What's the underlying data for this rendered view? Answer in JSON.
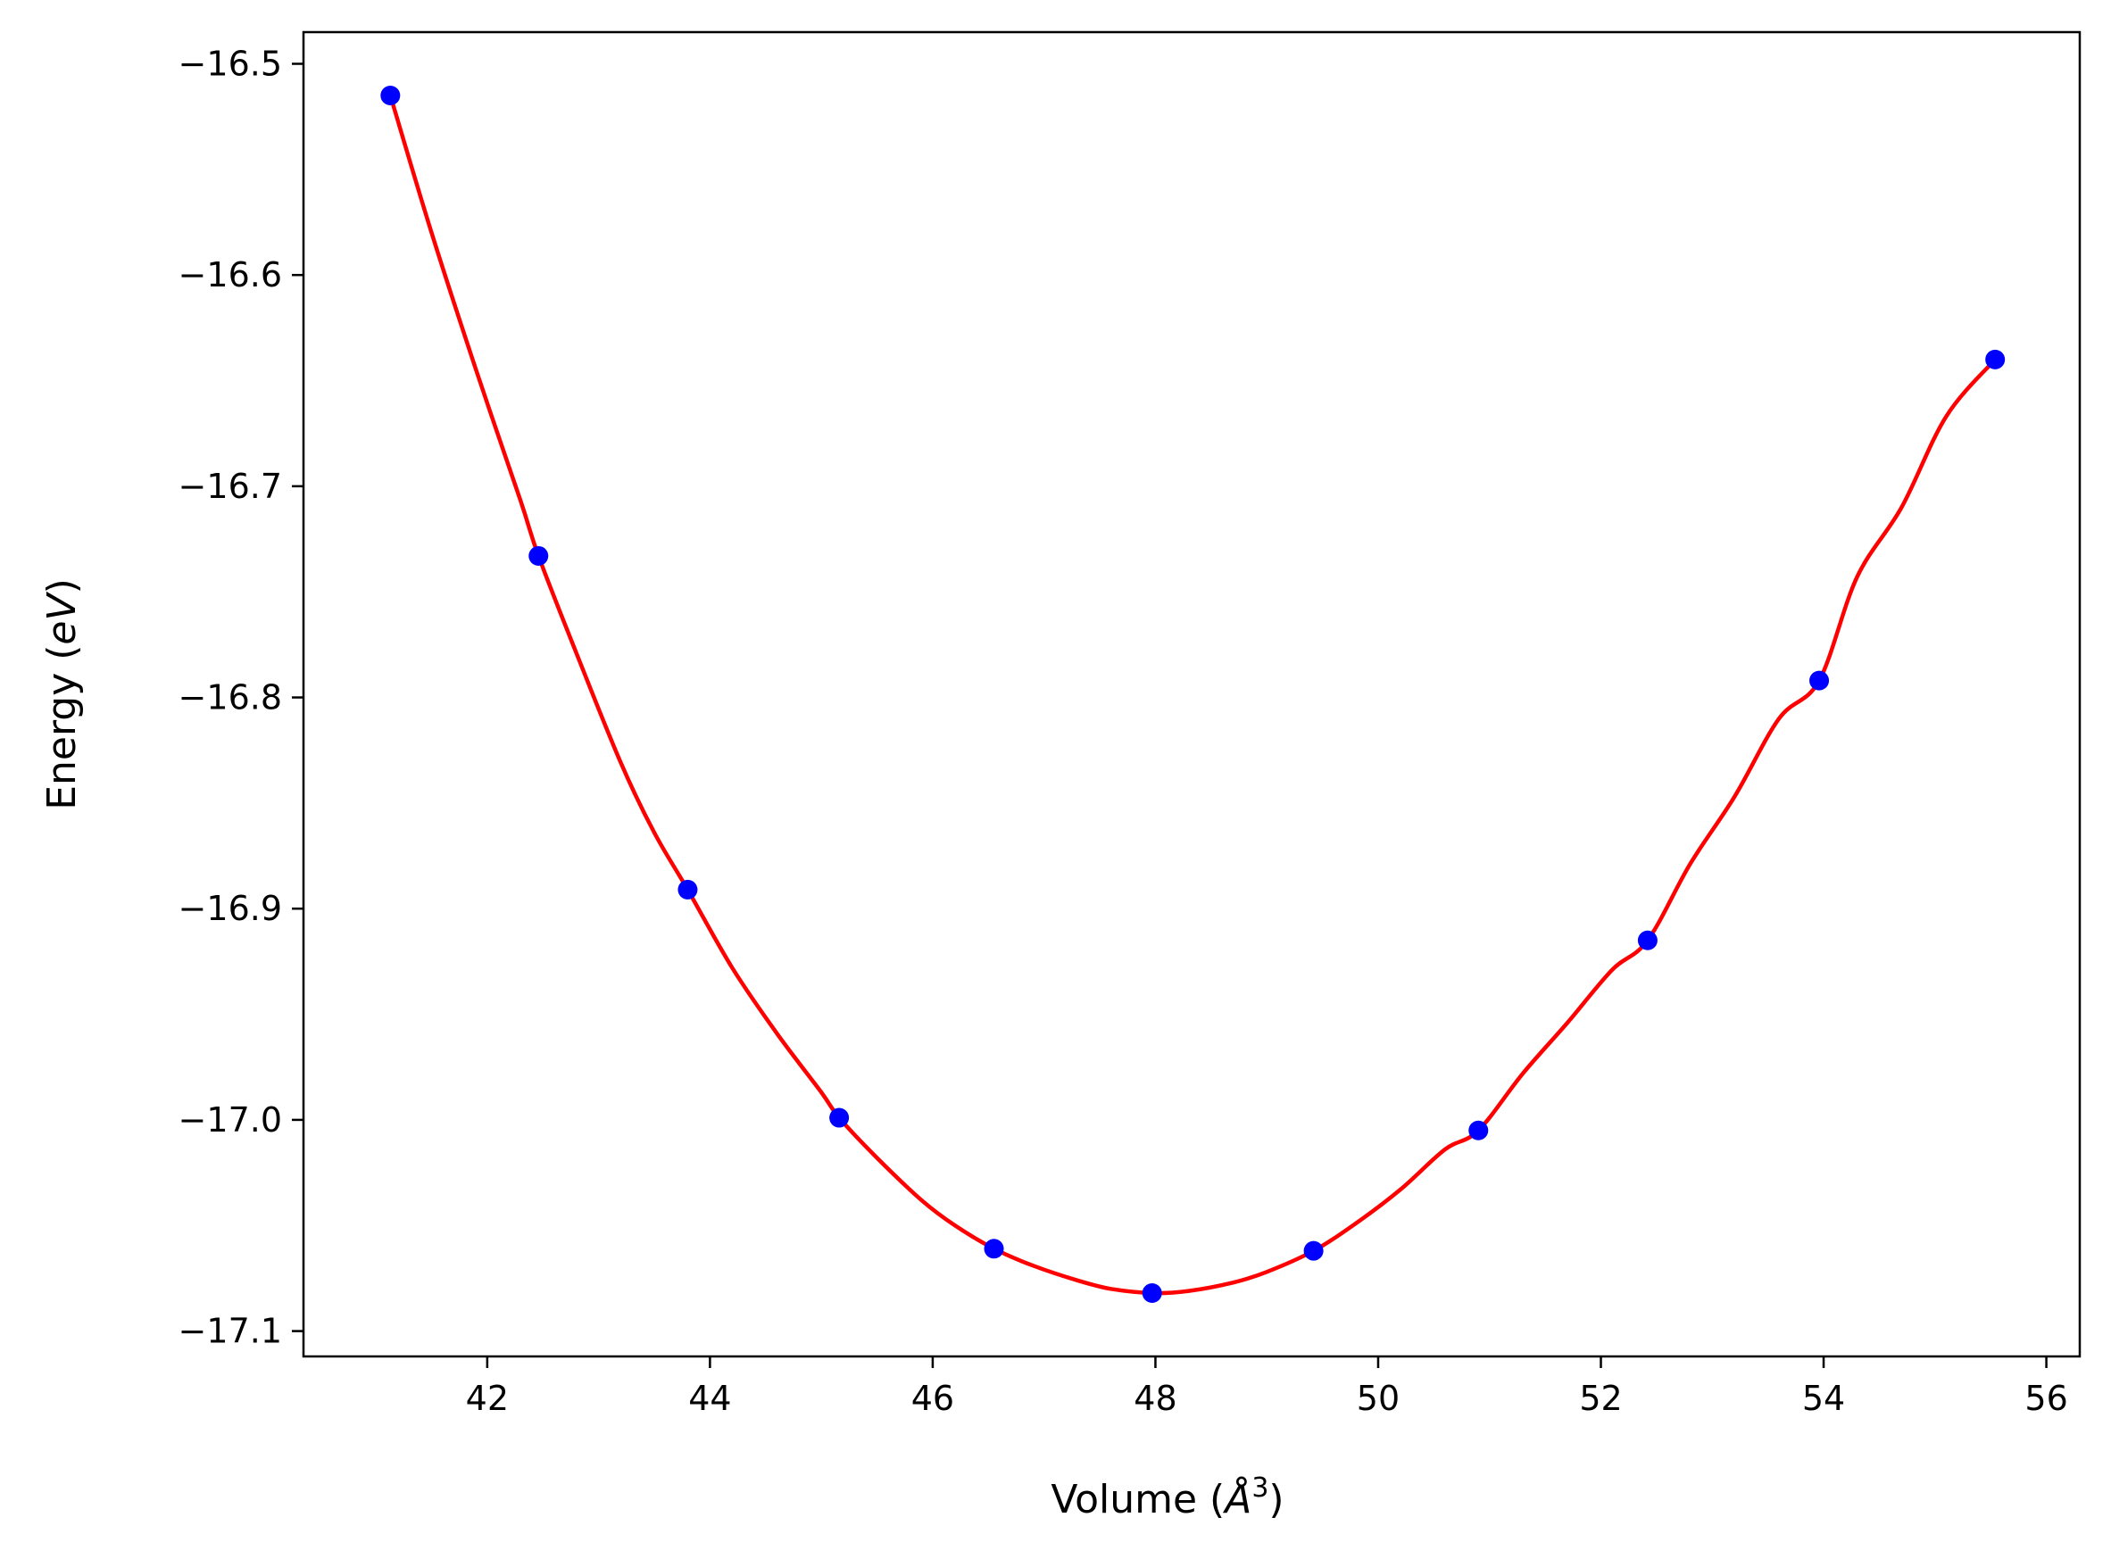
{
  "chart_data": {
    "type": "scatter",
    "title": "",
    "xlabel": {
      "prefix": "Volume (",
      "symbol": "Å",
      "exponent": "3",
      "suffix": ")"
    },
    "ylabel": {
      "prefix": "Energy (",
      "unit": "eV",
      "suffix": ")"
    },
    "xlim": [
      40.35,
      56.3
    ],
    "ylim": [
      -17.112,
      -16.485
    ],
    "xticks": [
      42,
      44,
      46,
      48,
      50,
      52,
      54,
      56
    ],
    "yticks": [
      -16.5,
      -16.6,
      -16.7,
      -16.8,
      -16.9,
      -17.0,
      -17.1
    ],
    "xtick_labels": [
      "42",
      "44",
      "46",
      "48",
      "50",
      "52",
      "54",
      "56"
    ],
    "ytick_labels": [
      "−16.5",
      "−16.6",
      "−16.7",
      "−16.8",
      "−16.9",
      "−17.0",
      "−17.1"
    ],
    "grid": false,
    "legend": "none",
    "series": [
      {
        "kind": "points",
        "color": "#0000ff",
        "x": [
          41.13,
          42.46,
          43.8,
          45.16,
          46.55,
          47.97,
          49.42,
          50.9,
          52.42,
          53.96,
          55.54
        ],
        "y": [
          -16.515,
          -16.733,
          -16.891,
          -16.999,
          -17.061,
          -17.082,
          -17.062,
          -17.005,
          -16.915,
          -16.792,
          -16.64
        ]
      },
      {
        "kind": "fit-curve",
        "color": "#ff0000",
        "x": [
          41.13,
          41.5,
          41.9,
          42.3,
          42.46,
          42.8,
          43.2,
          43.5,
          43.8,
          44.2,
          44.6,
          45.0,
          45.16,
          45.5,
          45.9,
          46.2,
          46.55,
          46.9,
          47.3,
          47.6,
          47.97,
          48.3,
          48.7,
          49.0,
          49.42,
          49.8,
          50.2,
          50.6,
          50.9,
          51.3,
          51.7,
          52.1,
          52.42,
          52.8,
          53.2,
          53.6,
          53.96,
          54.3,
          54.7,
          55.1,
          55.54
        ],
        "y": [
          -16.515,
          -16.58,
          -16.645,
          -16.707,
          -16.733,
          -16.779,
          -16.831,
          -16.864,
          -16.891,
          -16.928,
          -16.959,
          -16.987,
          -16.999,
          -17.018,
          -17.038,
          -17.05,
          -17.061,
          -17.069,
          -17.076,
          -17.08,
          -17.082,
          -17.081,
          -17.077,
          -17.072,
          -17.062,
          -17.049,
          -17.033,
          -17.014,
          -17.005,
          -16.978,
          -16.954,
          -16.929,
          -16.915,
          -16.879,
          -16.847,
          -16.81,
          -16.792,
          -16.743,
          -16.71,
          -16.667,
          -16.64
        ]
      }
    ]
  }
}
